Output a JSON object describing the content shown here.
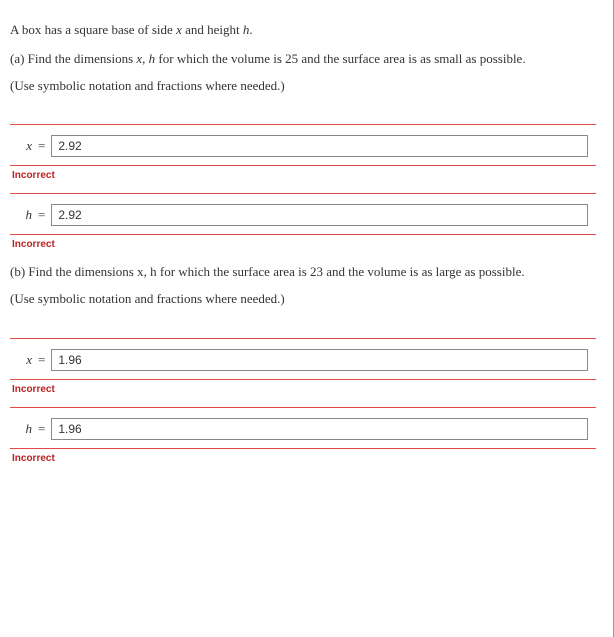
{
  "intro": {
    "line1_pre": "A box has a square base of side ",
    "var_x": "x",
    "line1_mid": " and height ",
    "var_h": "h",
    "line1_post": "."
  },
  "partA": {
    "prompt_pre": "(a) Find the dimensions ",
    "var_x": "x",
    "comma": ", ",
    "var_h": "h",
    "prompt_post": " for which the volume is 25 and the surface area is as small as possible.",
    "instruction": "(Use symbolic notation and fractions where needed.)",
    "x_label": "x",
    "eq": "=",
    "x_value": "2.92",
    "x_feedback": "Incorrect",
    "h_label": "h",
    "h_value": "2.92",
    "h_feedback": "Incorrect"
  },
  "partB": {
    "prompt_pre": "(b) Find the dimensions ",
    "var_x": "x",
    "comma": ", ",
    "var_h": "h",
    "prompt_post": " for which the surface area is 23 and the volume is as large as possible.",
    "instruction": "(Use symbolic notation and fractions where needed.)",
    "x_label": "x",
    "eq": "=",
    "x_value": "1.96",
    "x_feedback": "Incorrect",
    "h_label": "h",
    "h_value": "1.96",
    "h_feedback": "Incorrect"
  },
  "colors": {
    "error_border": "#e24a4a",
    "error_text": "#b22222"
  }
}
